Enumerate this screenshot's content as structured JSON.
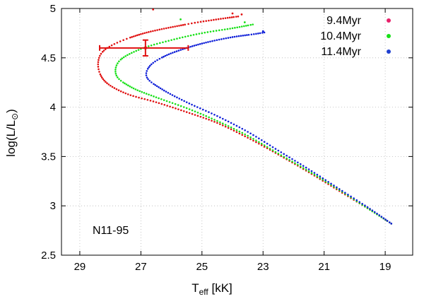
{
  "chart_data": {
    "type": "scatter",
    "title": "",
    "xlabel": "T",
    "xlabel_sub": "eff",
    "xlabel_unit": " [kK]",
    "ylabel": "log(L/L",
    "ylabel_sun": "⊙",
    "ylabel_close": ")",
    "xlim": [
      29.6,
      18.1
    ],
    "ylim": [
      2.5,
      5.0
    ],
    "xticks": [
      "29",
      "27",
      "25",
      "23",
      "21",
      "19"
    ],
    "xtick_values": [
      29,
      27,
      25,
      23,
      21,
      19
    ],
    "yticks": [
      "2.5",
      "3",
      "3.5",
      "4",
      "4.5",
      "5"
    ],
    "ytick_values": [
      2.5,
      3.0,
      3.5,
      4.0,
      4.5,
      5.0
    ],
    "grid": true,
    "legend_position": "top-right",
    "annotation": "N11-95",
    "series": [
      {
        "name": "9.4Myr",
        "color": "#e01010",
        "legend_color": "#e8206a",
        "tail_points": [
          [
            26.6,
            4.99
          ],
          [
            24.0,
            4.95
          ],
          [
            23.7,
            4.94
          ]
        ],
        "path": [
          [
            18.8,
            2.82
          ],
          [
            19.5,
            2.96
          ],
          [
            20.5,
            3.15
          ],
          [
            21.5,
            3.34
          ],
          [
            22.5,
            3.52
          ],
          [
            23.5,
            3.69
          ],
          [
            24.5,
            3.84
          ],
          [
            25.5,
            3.95
          ],
          [
            26.5,
            4.05
          ],
          [
            27.5,
            4.14
          ],
          [
            28.2,
            4.27
          ],
          [
            28.4,
            4.45
          ],
          [
            28.1,
            4.6
          ],
          [
            27.0,
            4.74
          ],
          [
            25.5,
            4.84
          ],
          [
            24.5,
            4.89
          ],
          [
            23.8,
            4.92
          ]
        ]
      },
      {
        "name": "10.4Myr",
        "color": "#18e018",
        "legend_color": "#18e018",
        "tail_points": [
          [
            25.7,
            4.89
          ],
          [
            23.6,
            4.86
          ]
        ],
        "path": [
          [
            18.8,
            2.82
          ],
          [
            19.5,
            2.96
          ],
          [
            20.5,
            3.16
          ],
          [
            21.5,
            3.35
          ],
          [
            22.5,
            3.53
          ],
          [
            23.5,
            3.71
          ],
          [
            24.5,
            3.86
          ],
          [
            25.5,
            3.99
          ],
          [
            26.5,
            4.1
          ],
          [
            27.3,
            4.2
          ],
          [
            27.8,
            4.32
          ],
          [
            27.7,
            4.47
          ],
          [
            27.0,
            4.59
          ],
          [
            26.0,
            4.68
          ],
          [
            25.0,
            4.75
          ],
          [
            24.0,
            4.8
          ],
          [
            23.3,
            4.84
          ]
        ]
      },
      {
        "name": "11.4Myr",
        "color": "#1020d8",
        "legend_color": "#2040d0",
        "tail_points": [
          [
            23.0,
            4.77
          ]
        ],
        "path": [
          [
            18.8,
            2.82
          ],
          [
            19.5,
            2.97
          ],
          [
            20.5,
            3.17
          ],
          [
            21.5,
            3.37
          ],
          [
            22.5,
            3.56
          ],
          [
            23.5,
            3.75
          ],
          [
            24.5,
            3.91
          ],
          [
            25.5,
            4.05
          ],
          [
            26.3,
            4.18
          ],
          [
            26.8,
            4.3
          ],
          [
            26.7,
            4.42
          ],
          [
            26.2,
            4.52
          ],
          [
            25.5,
            4.6
          ],
          [
            24.8,
            4.66
          ],
          [
            24.0,
            4.71
          ],
          [
            23.3,
            4.74
          ],
          [
            22.9,
            4.76
          ]
        ]
      }
    ],
    "observed_point": {
      "x": 26.85,
      "y": 4.6,
      "x_err": [
        28.35,
        25.45
      ],
      "y_err": [
        4.52,
        4.68
      ],
      "color": "#e01010"
    }
  }
}
